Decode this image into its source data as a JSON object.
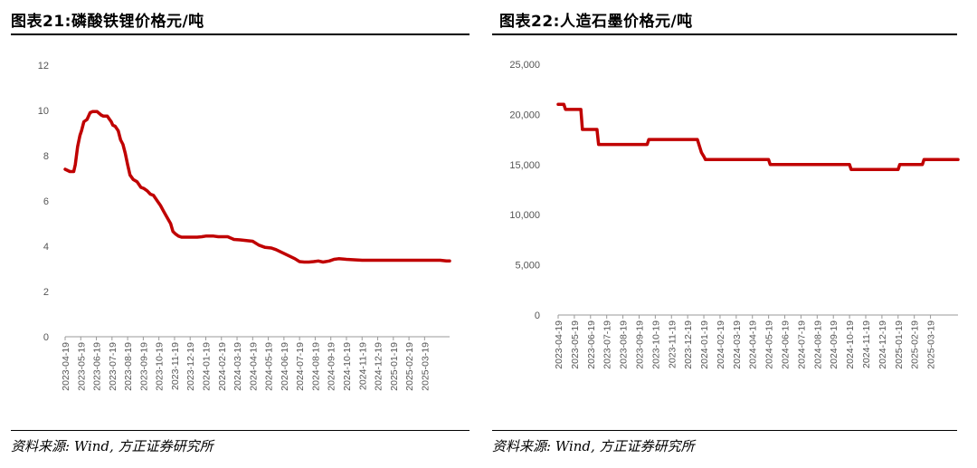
{
  "left_panel": {
    "title": "图表21:磷酸铁锂价格元/吨",
    "source": "资料来源: Wind, 方正证券研究所"
  },
  "right_panel": {
    "title": "图表22:人造石墨价格元/吨",
    "source": "资料来源: Wind, 方正证券研究所"
  },
  "chart_data": [
    {
      "type": "line",
      "title": "图表21:磷酸铁锂价格元/吨",
      "xlabel": "",
      "ylabel": "",
      "x_tick_labels": [
        "2023-04-19",
        "2023-05-19",
        "2023-06-19",
        "2023-07-19",
        "2023-08-19",
        "2023-09-19",
        "2023-10-19",
        "2023-11-19",
        "2023-12-19",
        "2024-01-19",
        "2024-02-19",
        "2024-03-19",
        "2024-04-19",
        "2024-05-19",
        "2024-06-19",
        "2024-07-19",
        "2024-08-19",
        "2024-09-19",
        "2024-10-19",
        "2024-11-19",
        "2024-12-19",
        "2025-01-19",
        "2025-02-19",
        "2025-03-19"
      ],
      "y_tick_labels": [
        "0",
        "2",
        "4",
        "6",
        "8",
        "10",
        "12"
      ],
      "ylim": [
        0,
        12
      ],
      "xlim": [
        0,
        24.6
      ],
      "line_color": "#c00000",
      "series": [
        {
          "x": [
            0,
            0.3,
            0.55,
            0.65,
            0.8,
            0.95,
            1.05,
            1.2,
            1.4,
            1.6,
            1.75,
            1.9,
            2.05,
            2.3,
            2.45,
            2.7,
            2.95,
            3.05,
            3.2,
            3.4,
            3.55,
            3.7,
            3.85,
            4.0,
            4.15,
            4.35,
            4.6,
            4.85,
            5.05,
            5.25,
            5.45,
            5.65,
            5.9,
            6.1,
            6.3,
            6.5,
            6.75,
            6.9,
            7.05,
            7.25,
            7.45,
            7.65,
            7.85,
            8.0,
            8.2,
            8.45,
            8.75,
            9.0,
            9.2,
            9.5,
            9.8,
            10.1,
            10.4,
            10.8,
            11.2,
            11.6,
            12.0,
            12.4,
            12.8,
            13.2,
            13.5,
            13.8,
            14.1,
            14.4,
            14.7,
            15.0,
            15.3,
            15.6,
            15.9,
            16.2,
            16.5,
            16.9,
            17.2,
            17.5,
            18.0,
            18.5,
            19.0,
            19.5,
            20.0,
            20.5,
            21.0,
            21.5,
            22.0,
            22.5,
            23.0,
            23.5,
            24.0,
            24.4,
            24.6
          ],
          "y": [
            7.4,
            7.3,
            7.3,
            7.6,
            8.4,
            8.9,
            9.1,
            9.5,
            9.6,
            9.9,
            9.95,
            9.95,
            9.95,
            9.8,
            9.75,
            9.75,
            9.5,
            9.35,
            9.3,
            9.1,
            8.7,
            8.5,
            8.1,
            7.6,
            7.15,
            6.95,
            6.85,
            6.6,
            6.55,
            6.45,
            6.3,
            6.25,
            6.0,
            5.8,
            5.55,
            5.3,
            5.0,
            4.65,
            4.55,
            4.45,
            4.4,
            4.4,
            4.4,
            4.4,
            4.4,
            4.4,
            4.42,
            4.45,
            4.45,
            4.45,
            4.42,
            4.42,
            4.42,
            4.3,
            4.28,
            4.25,
            4.22,
            4.05,
            3.95,
            3.92,
            3.85,
            3.75,
            3.65,
            3.55,
            3.45,
            3.32,
            3.3,
            3.3,
            3.32,
            3.35,
            3.3,
            3.35,
            3.42,
            3.45,
            3.42,
            3.4,
            3.38,
            3.38,
            3.38,
            3.38,
            3.38,
            3.38,
            3.38,
            3.38,
            3.38,
            3.38,
            3.38,
            3.35,
            3.35
          ]
        }
      ]
    },
    {
      "type": "line",
      "title": "图表22:人造石墨价格元/吨",
      "xlabel": "",
      "ylabel": "",
      "x_tick_labels": [
        "2023-04-19",
        "2023-05-19",
        "2023-06-19",
        "2023-07-19",
        "2023-08-19",
        "2023-09-19",
        "2023-10-19",
        "2023-11-19",
        "2023-12-19",
        "2024-01-19",
        "2024-02-19",
        "2024-03-19",
        "2024-04-19",
        "2024-05-19",
        "2024-06-19",
        "2024-07-19",
        "2024-08-19",
        "2024-09-19",
        "2024-10-19",
        "2024-11-19",
        "2024-12-19",
        "2025-01-19",
        "2025-02-19",
        "2025-03-19"
      ],
      "y_tick_labels": [
        "0",
        "5,000",
        "10,000",
        "15,000",
        "20,000",
        "25,000"
      ],
      "ylim": [
        0,
        25000
      ],
      "xlim": [
        0,
        24.7
      ],
      "line_color": "#c00000",
      "series": [
        {
          "x": [
            0,
            0.35,
            0.45,
            1.4,
            1.5,
            2.4,
            2.5,
            5.5,
            5.6,
            8.6,
            8.85,
            9.0,
            9.1,
            13.0,
            13.1,
            18.0,
            18.1,
            21.0,
            21.1,
            22.5,
            22.6,
            24.7
          ],
          "y": [
            21000,
            21000,
            20500,
            20500,
            18500,
            18500,
            17000,
            17000,
            17500,
            17500,
            16200,
            15800,
            15500,
            15500,
            15000,
            15000,
            14500,
            14500,
            15000,
            15000,
            15500,
            15500
          ]
        }
      ]
    }
  ]
}
